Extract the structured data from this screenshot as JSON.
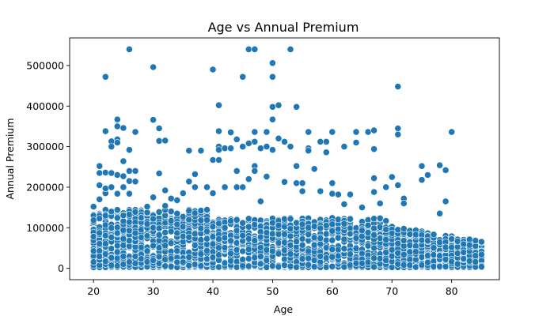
{
  "chart_data": {
    "type": "scatter",
    "title": "Age vs Annual Premium",
    "xlabel": "Age",
    "ylabel": "Annual Premium",
    "xlim": [
      16,
      88
    ],
    "ylim": [
      -28000,
      568000
    ],
    "xticks": [
      20,
      30,
      40,
      50,
      60,
      70,
      80
    ],
    "yticks": [
      0,
      100000,
      200000,
      300000,
      400000,
      500000
    ],
    "grid": false,
    "legend": "none",
    "colors": {
      "marker": "#1f77b4",
      "marker_edge": "#ffffff"
    },
    "dense_band": {
      "x_range": [
        20,
        85
      ],
      "y_ranges": [
        [
          2630,
          145000
        ],
        [
          2630,
          80000
        ],
        [
          2630,
          60000
        ]
      ],
      "note_floor": 2630
    },
    "series": [
      {
        "values": [
          [
            20,
            152000
          ],
          [
            21,
            252000
          ],
          [
            21,
            205000
          ],
          [
            21,
            235000
          ],
          [
            21,
            170000
          ],
          [
            22,
            472000
          ],
          [
            22,
            338000
          ],
          [
            22,
            236000
          ],
          [
            22,
            185000
          ],
          [
            22,
            197000
          ],
          [
            23,
            313000
          ],
          [
            23,
            300000
          ],
          [
            23,
            235000
          ],
          [
            23,
            200000
          ],
          [
            24,
            367000
          ],
          [
            24,
            350000
          ],
          [
            24,
            318000
          ],
          [
            24,
            310000
          ],
          [
            24,
            230000
          ],
          [
            24,
            184000
          ],
          [
            25,
            346000
          ],
          [
            25,
            264000
          ],
          [
            25,
            227000
          ],
          [
            25,
            200000
          ],
          [
            26,
            540000
          ],
          [
            26,
            292000
          ],
          [
            26,
            240000
          ],
          [
            26,
            215000
          ],
          [
            26,
            184000
          ],
          [
            27,
            336000
          ],
          [
            27,
            240000
          ],
          [
            27,
            214000
          ],
          [
            29,
            152000
          ],
          [
            30,
            496000
          ],
          [
            30,
            366000
          ],
          [
            30,
            175000
          ],
          [
            31,
            345000
          ],
          [
            31,
            314000
          ],
          [
            31,
            234000
          ],
          [
            32,
            315000
          ],
          [
            32,
            192000
          ],
          [
            32,
            154000
          ],
          [
            33,
            172000
          ],
          [
            34,
            168000
          ],
          [
            35,
            185000
          ],
          [
            36,
            290000
          ],
          [
            36,
            214000
          ],
          [
            37,
            232000
          ],
          [
            37,
            200000
          ],
          [
            38,
            290000
          ],
          [
            39,
            200000
          ],
          [
            40,
            490000
          ],
          [
            40,
            267000
          ],
          [
            40,
            185000
          ],
          [
            41,
            402000
          ],
          [
            41,
            338000
          ],
          [
            41,
            300000
          ],
          [
            41,
            292000
          ],
          [
            41,
            267000
          ],
          [
            42,
            296000
          ],
          [
            42,
            200000
          ],
          [
            43,
            335000
          ],
          [
            43,
            296000
          ],
          [
            44,
            318000
          ],
          [
            44,
            240000
          ],
          [
            44,
            200000
          ],
          [
            45,
            472000
          ],
          [
            45,
            300000
          ],
          [
            45,
            200000
          ],
          [
            46,
            540000
          ],
          [
            46,
            308000
          ],
          [
            46,
            220000
          ],
          [
            47,
            540000
          ],
          [
            47,
            336000
          ],
          [
            47,
            312000
          ],
          [
            47,
            252000
          ],
          [
            47,
            240000
          ],
          [
            48,
            296000
          ],
          [
            48,
            165000
          ],
          [
            49,
            336000
          ],
          [
            49,
            300000
          ],
          [
            49,
            226000
          ],
          [
            50,
            506000
          ],
          [
            50,
            472000
          ],
          [
            50,
            398000
          ],
          [
            50,
            367000
          ],
          [
            50,
            292000
          ],
          [
            51,
            402000
          ],
          [
            51,
            320000
          ],
          [
            52,
            312000
          ],
          [
            52,
            213000
          ],
          [
            53,
            540000
          ],
          [
            53,
            300000
          ],
          [
            54,
            398000
          ],
          [
            54,
            252000
          ],
          [
            54,
            210000
          ],
          [
            55,
            190000
          ],
          [
            55,
            210000
          ],
          [
            56,
            336000
          ],
          [
            56,
            296000
          ],
          [
            56,
            290000
          ],
          [
            57,
            245000
          ],
          [
            58,
            312000
          ],
          [
            58,
            190000
          ],
          [
            59,
            312000
          ],
          [
            59,
            286000
          ],
          [
            60,
            336000
          ],
          [
            60,
            210000
          ],
          [
            60,
            184000
          ],
          [
            61,
            182000
          ],
          [
            62,
            300000
          ],
          [
            62,
            158000
          ],
          [
            63,
            182000
          ],
          [
            64,
            336000
          ],
          [
            64,
            310000
          ],
          [
            65,
            150000
          ],
          [
            66,
            336000
          ],
          [
            67,
            340000
          ],
          [
            67,
            294000
          ],
          [
            67,
            222000
          ],
          [
            67,
            188000
          ],
          [
            68,
            160000
          ],
          [
            69,
            200000
          ],
          [
            70,
            225000
          ],
          [
            71,
            448000
          ],
          [
            71,
            345000
          ],
          [
            71,
            330000
          ],
          [
            71,
            205000
          ],
          [
            72,
            172000
          ],
          [
            72,
            160000
          ],
          [
            75,
            252000
          ],
          [
            75,
            218000
          ],
          [
            76,
            230000
          ],
          [
            78,
            254000
          ],
          [
            78,
            135000
          ],
          [
            79,
            242000
          ],
          [
            79,
            165000
          ],
          [
            80,
            336000
          ]
        ]
      }
    ]
  }
}
